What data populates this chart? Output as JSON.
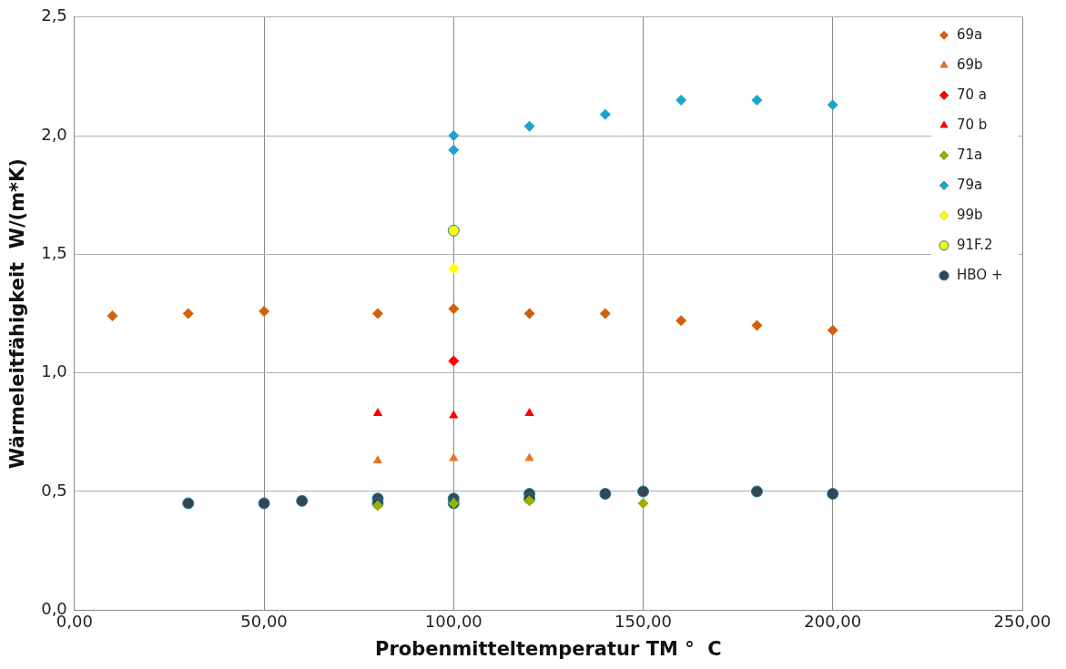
{
  "chart_data": {
    "type": "scatter",
    "xlabel": "Probenmitteltemperatur TM °  C",
    "ylabel": "Wärmeleitfähigkeit  W/(m*K)",
    "xlim": [
      0,
      250
    ],
    "xticks": [
      {
        "value": 0,
        "label": "0,00"
      },
      {
        "value": 50,
        "label": "50,00"
      },
      {
        "value": 100,
        "label": "100,00"
      },
      {
        "value": 150,
        "label": "150,00"
      },
      {
        "value": 200,
        "label": "200,00"
      },
      {
        "value": 250,
        "label": "250,00"
      }
    ],
    "ylim": [
      0,
      2.5
    ],
    "yticks": [
      {
        "value": 0,
        "label": "0,0"
      },
      {
        "value": 0.5,
        "label": "0,5"
      },
      {
        "value": 1,
        "label": "1,0"
      },
      {
        "value": 1.5,
        "label": "1,5"
      },
      {
        "value": 2,
        "label": "2,0"
      },
      {
        "value": 2.5,
        "label": "2,5"
      }
    ],
    "grid": true,
    "legend": "top right",
    "series": [
      {
        "name": "69a",
        "color": "#d35f0a",
        "marker": "diamond",
        "x": [
          10,
          30,
          50,
          80,
          100,
          120,
          140,
          160,
          180,
          200
        ],
        "values": [
          1.24,
          1.25,
          1.26,
          1.25,
          1.27,
          1.25,
          1.25,
          1.22,
          1.2,
          1.18
        ]
      },
      {
        "name": "69b",
        "color": "#e8742a",
        "marker": "triangle",
        "x": [
          80,
          100,
          120
        ],
        "values": [
          0.63,
          0.64,
          0.64
        ]
      },
      {
        "name": "70 a",
        "color": "#ff0000",
        "marker": "diamond",
        "x": [
          100
        ],
        "values": [
          1.05
        ]
      },
      {
        "name": "70 b",
        "color": "#ff0000",
        "marker": "triangle",
        "x": [
          80,
          100,
          120
        ],
        "values": [
          0.83,
          0.82,
          0.83
        ]
      },
      {
        "name": "71a",
        "color": "#9bb000",
        "marker": "diamond",
        "x": [
          80,
          100,
          120,
          150
        ],
        "values": [
          0.44,
          0.45,
          0.46,
          0.45
        ]
      },
      {
        "name": "79a",
        "color": "#1fa4c9",
        "marker": "diamond",
        "x": [
          100,
          100,
          120,
          140,
          160,
          180,
          200
        ],
        "values": [
          2.0,
          1.94,
          2.04,
          2.09,
          2.15,
          2.15,
          2.13
        ]
      },
      {
        "name": "99b",
        "color": "#ffff00",
        "marker": "diamond",
        "x": [
          100
        ],
        "values": [
          1.44
        ]
      },
      {
        "name": "91F.2",
        "color": "#ffff00",
        "marker": "circle",
        "x": [
          100
        ],
        "values": [
          1.6
        ]
      },
      {
        "name": "HBO +",
        "color": "#36454f",
        "marker": "circle",
        "x": [
          30,
          50,
          60,
          80,
          80,
          100,
          100,
          120,
          120,
          140,
          150,
          180,
          200
        ],
        "values": [
          0.45,
          0.45,
          0.46,
          0.47,
          0.45,
          0.47,
          0.45,
          0.49,
          0.47,
          0.49,
          0.5,
          0.5,
          0.49
        ]
      }
    ]
  }
}
